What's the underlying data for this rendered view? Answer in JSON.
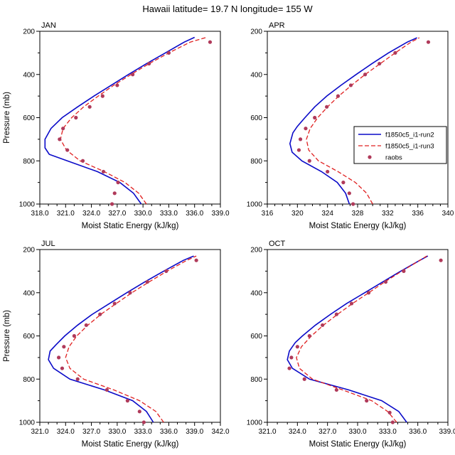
{
  "title": "Hawaii  latitude= 19.7 N longitude= 155 W",
  "xlabel": "Moist Static Energy (kJ/kg)",
  "ylabel": "Pressure (mb)",
  "colors": {
    "run2": "#0a0ac8",
    "run3": "#e02020",
    "raobs": "#b03a5a",
    "axis": "#000000"
  },
  "legend": {
    "labels": [
      "f1850c5_i1-run2",
      "f1850c5_i1-run3",
      "raobs"
    ]
  },
  "chart_data": [
    {
      "type": "line",
      "title": "JAN",
      "xlabel": "Moist Static Energy (kJ/kg)",
      "ylabel": "Pressure (mb)",
      "xlim": [
        318,
        339
      ],
      "xticks": [
        318,
        321,
        324,
        327,
        330,
        333,
        336,
        339
      ],
      "xtick_labels": [
        "318.0",
        "321.0",
        "324.0",
        "327.0",
        "330.0",
        "333.0",
        "336.0",
        "339.0"
      ],
      "x_minor_step": 1,
      "ylim": [
        200,
        1000
      ],
      "yticks": [
        200,
        400,
        600,
        800,
        1000
      ],
      "ytick_labels": [
        "200",
        "400",
        "600",
        "800",
        "1000"
      ],
      "y_minor_step": 100,
      "show_legend": false,
      "series": [
        {
          "name": "f1850c5_i1-run2",
          "style": "solid",
          "color": "#0a0ac8",
          "points": [
            [
              329.8,
              1000
            ],
            [
              328.9,
              950
            ],
            [
              327.3,
              900
            ],
            [
              324.7,
              850
            ],
            [
              321.2,
              800
            ],
            [
              319.1,
              770
            ],
            [
              318.6,
              740
            ],
            [
              318.6,
              700
            ],
            [
              319.3,
              650
            ],
            [
              320.6,
              600
            ],
            [
              322.4,
              550
            ],
            [
              324.3,
              500
            ],
            [
              326.3,
              450
            ],
            [
              328.3,
              400
            ],
            [
              330.4,
              350
            ],
            [
              332.6,
              300
            ],
            [
              334.8,
              250
            ],
            [
              336.0,
              228
            ]
          ]
        },
        {
          "name": "f1850c5_i1-run3",
          "style": "dashed",
          "color": "#e02020",
          "points": [
            [
              330.4,
              1000
            ],
            [
              329.5,
              950
            ],
            [
              327.9,
              900
            ],
            [
              325.5,
              850
            ],
            [
              322.7,
              800
            ],
            [
              321.1,
              750
            ],
            [
              320.4,
              700
            ],
            [
              320.7,
              650
            ],
            [
              321.7,
              600
            ],
            [
              323.1,
              550
            ],
            [
              324.8,
              500
            ],
            [
              326.6,
              450
            ],
            [
              328.6,
              400
            ],
            [
              330.7,
              350
            ],
            [
              333.0,
              300
            ],
            [
              335.5,
              250
            ],
            [
              337.4,
              228
            ]
          ]
        },
        {
          "name": "raobs",
          "style": "dots",
          "color": "#b03a5a",
          "points": [
            [
              326.4,
              1000
            ],
            [
              326.7,
              950
            ],
            [
              327.1,
              900
            ],
            [
              325.4,
              850
            ],
            [
              323.0,
              800
            ],
            [
              321.2,
              750
            ],
            [
              320.3,
              700
            ],
            [
              320.7,
              650
            ],
            [
              322.2,
              600
            ],
            [
              323.8,
              550
            ],
            [
              325.3,
              500
            ],
            [
              327.0,
              450
            ],
            [
              328.8,
              400
            ],
            [
              330.7,
              350
            ],
            [
              333.0,
              300
            ],
            [
              337.8,
              250
            ]
          ]
        }
      ]
    },
    {
      "type": "line",
      "title": "APR",
      "xlabel": "Moist Static Energy (kJ/kg)",
      "ylabel": "",
      "xlim": [
        316,
        340
      ],
      "xticks": [
        316,
        320,
        324,
        328,
        332,
        336,
        340
      ],
      "xtick_labels": [
        "316",
        "320",
        "324",
        "328",
        "332",
        "336",
        "340"
      ],
      "x_minor_step": 1,
      "ylim": [
        200,
        1000
      ],
      "yticks": [
        200,
        400,
        600,
        800,
        1000
      ],
      "ytick_labels": [
        "200",
        "400",
        "600",
        "800",
        "1000"
      ],
      "y_minor_step": 100,
      "show_legend": true,
      "series": [
        {
          "name": "f1850c5_i1-run2",
          "style": "solid",
          "color": "#0a0ac8",
          "points": [
            [
              326.9,
              1000
            ],
            [
              326.4,
              950
            ],
            [
              325.3,
              900
            ],
            [
              323.2,
              850
            ],
            [
              320.6,
              800
            ],
            [
              319.3,
              760
            ],
            [
              319.0,
              720
            ],
            [
              319.4,
              670
            ],
            [
              320.0,
              640
            ],
            [
              321.0,
              600
            ],
            [
              322.3,
              550
            ],
            [
              323.9,
              500
            ],
            [
              325.8,
              450
            ],
            [
              327.8,
              400
            ],
            [
              329.9,
              350
            ],
            [
              332.1,
              300
            ],
            [
              334.6,
              250
            ],
            [
              335.9,
              230
            ]
          ]
        },
        {
          "name": "f1850c5_i1-run3",
          "style": "dashed",
          "color": "#e02020",
          "points": [
            [
              330.0,
              1000
            ],
            [
              329.2,
              950
            ],
            [
              327.7,
              900
            ],
            [
              325.4,
              850
            ],
            [
              322.8,
              800
            ],
            [
              321.5,
              750
            ],
            [
              321.2,
              700
            ],
            [
              321.7,
              650
            ],
            [
              322.7,
              600
            ],
            [
              324.0,
              550
            ],
            [
              325.5,
              500
            ],
            [
              327.2,
              450
            ],
            [
              329.0,
              400
            ],
            [
              331.0,
              350
            ],
            [
              333.0,
              300
            ],
            [
              335.1,
              250
            ],
            [
              336.2,
              230
            ]
          ]
        },
        {
          "name": "raobs",
          "style": "dots",
          "color": "#b03a5a",
          "points": [
            [
              327.4,
              1000
            ],
            [
              326.9,
              950
            ],
            [
              326.1,
              900
            ],
            [
              324.0,
              850
            ],
            [
              321.6,
              800
            ],
            [
              320.2,
              750
            ],
            [
              320.4,
              700
            ],
            [
              321.1,
              650
            ],
            [
              322.3,
              600
            ],
            [
              323.9,
              550
            ],
            [
              325.4,
              500
            ],
            [
              327.1,
              450
            ],
            [
              329.0,
              400
            ],
            [
              330.9,
              350
            ],
            [
              333.0,
              300
            ],
            [
              337.4,
              250
            ]
          ]
        }
      ]
    },
    {
      "type": "line",
      "title": "JUL",
      "xlabel": "Moist Static Energy (kJ/kg)",
      "ylabel": "Pressure (mb)",
      "xlim": [
        321,
        342
      ],
      "xticks": [
        321,
        324,
        327,
        330,
        333,
        336,
        339,
        342
      ],
      "xtick_labels": [
        "321.0",
        "324.0",
        "327.0",
        "330.0",
        "333.0",
        "336.0",
        "339.0",
        "342.0"
      ],
      "x_minor_step": 1,
      "ylim": [
        200,
        1000
      ],
      "yticks": [
        200,
        400,
        600,
        800,
        1000
      ],
      "ytick_labels": [
        "200",
        "400",
        "600",
        "800",
        "1000"
      ],
      "y_minor_step": 100,
      "show_legend": false,
      "series": [
        {
          "name": "f1850c5_i1-run2",
          "style": "solid",
          "color": "#0a0ac8",
          "points": [
            [
              334.2,
              1000
            ],
            [
              333.4,
              950
            ],
            [
              331.8,
              900
            ],
            [
              328.5,
              850
            ],
            [
              324.5,
              800
            ],
            [
              322.6,
              750
            ],
            [
              322.0,
              710
            ],
            [
              322.2,
              670
            ],
            [
              322.9,
              640
            ],
            [
              323.9,
              600
            ],
            [
              325.4,
              550
            ],
            [
              327.1,
              500
            ],
            [
              329.1,
              450
            ],
            [
              331.1,
              400
            ],
            [
              333.2,
              350
            ],
            [
              335.4,
              300
            ],
            [
              337.7,
              250
            ],
            [
              338.9,
              230
            ]
          ]
        },
        {
          "name": "f1850c5_i1-run3",
          "style": "dashed",
          "color": "#e02020",
          "points": [
            [
              335.4,
              1000
            ],
            [
              334.5,
              950
            ],
            [
              332.6,
              900
            ],
            [
              329.6,
              850
            ],
            [
              326.1,
              800
            ],
            [
              324.5,
              750
            ],
            [
              324.0,
              700
            ],
            [
              324.4,
              650
            ],
            [
              325.3,
              600
            ],
            [
              326.6,
              550
            ],
            [
              328.1,
              500
            ],
            [
              329.9,
              450
            ],
            [
              331.7,
              400
            ],
            [
              333.7,
              350
            ],
            [
              335.8,
              300
            ],
            [
              338.1,
              250
            ],
            [
              339.2,
              230
            ]
          ]
        },
        {
          "name": "raobs",
          "style": "dots",
          "color": "#b03a5a",
          "points": [
            [
              333.1,
              1000
            ],
            [
              332.6,
              950
            ],
            [
              331.2,
              900
            ],
            [
              328.8,
              850
            ],
            [
              325.4,
              800
            ],
            [
              323.6,
              750
            ],
            [
              323.2,
              700
            ],
            [
              323.8,
              650
            ],
            [
              325.0,
              600
            ],
            [
              326.4,
              550
            ],
            [
              328.0,
              500
            ],
            [
              329.7,
              450
            ],
            [
              331.5,
              400
            ],
            [
              333.5,
              350
            ],
            [
              335.7,
              300
            ],
            [
              339.2,
              250
            ]
          ]
        }
      ]
    },
    {
      "type": "line",
      "title": "OCT",
      "xlabel": "Moist Static Energy (kJ/kg)",
      "ylabel": "",
      "xlim": [
        321,
        339
      ],
      "xticks": [
        321,
        324,
        327,
        330,
        333,
        336,
        339
      ],
      "xtick_labels": [
        "321.0",
        "324.0",
        "327.0",
        "330.0",
        "333.0",
        "336.0",
        "339.0"
      ],
      "x_minor_step": 1,
      "ylim": [
        200,
        1000
      ],
      "yticks": [
        200,
        400,
        600,
        800,
        1000
      ],
      "ytick_labels": [
        "200",
        "400",
        "600",
        "800",
        "1000"
      ],
      "y_minor_step": 100,
      "show_legend": false,
      "series": [
        {
          "name": "f1850c5_i1-run2",
          "style": "solid",
          "color": "#0a0ac8",
          "points": [
            [
              334.9,
              1000
            ],
            [
              334.1,
              950
            ],
            [
              332.4,
              900
            ],
            [
              329.1,
              850
            ],
            [
              325.2,
              800
            ],
            [
              323.5,
              750
            ],
            [
              323.0,
              710
            ],
            [
              323.2,
              670
            ],
            [
              323.8,
              630
            ],
            [
              324.5,
              600
            ],
            [
              325.8,
              550
            ],
            [
              327.3,
              500
            ],
            [
              328.9,
              450
            ],
            [
              330.7,
              400
            ],
            [
              332.5,
              350
            ],
            [
              334.3,
              300
            ],
            [
              336.2,
              250
            ],
            [
              337.0,
              230
            ]
          ]
        },
        {
          "name": "f1850c5_i1-run3",
          "style": "dashed",
          "color": "#e02020",
          "points": [
            [
              333.9,
              1000
            ],
            [
              333.0,
              950
            ],
            [
              331.4,
              900
            ],
            [
              328.5,
              850
            ],
            [
              325.5,
              800
            ],
            [
              324.2,
              750
            ],
            [
              323.9,
              700
            ],
            [
              324.4,
              650
            ],
            [
              325.4,
              600
            ],
            [
              326.6,
              550
            ],
            [
              328.0,
              500
            ],
            [
              329.5,
              450
            ],
            [
              331.1,
              400
            ],
            [
              332.7,
              350
            ],
            [
              334.4,
              300
            ],
            [
              336.2,
              250
            ],
            [
              336.9,
              230
            ]
          ]
        },
        {
          "name": "raobs",
          "style": "dots",
          "color": "#b03a5a",
          "points": [
            [
              333.5,
              1000
            ],
            [
              333.2,
              955
            ],
            [
              330.9,
              900
            ],
            [
              327.9,
              850
            ],
            [
              324.7,
              800
            ],
            [
              323.2,
              750
            ],
            [
              323.4,
              700
            ],
            [
              324.0,
              650
            ],
            [
              325.2,
              600
            ],
            [
              326.5,
              550
            ],
            [
              327.9,
              500
            ],
            [
              329.4,
              450
            ],
            [
              331.1,
              400
            ],
            [
              332.8,
              350
            ],
            [
              334.6,
              300
            ],
            [
              338.3,
              250
            ]
          ]
        }
      ]
    }
  ]
}
